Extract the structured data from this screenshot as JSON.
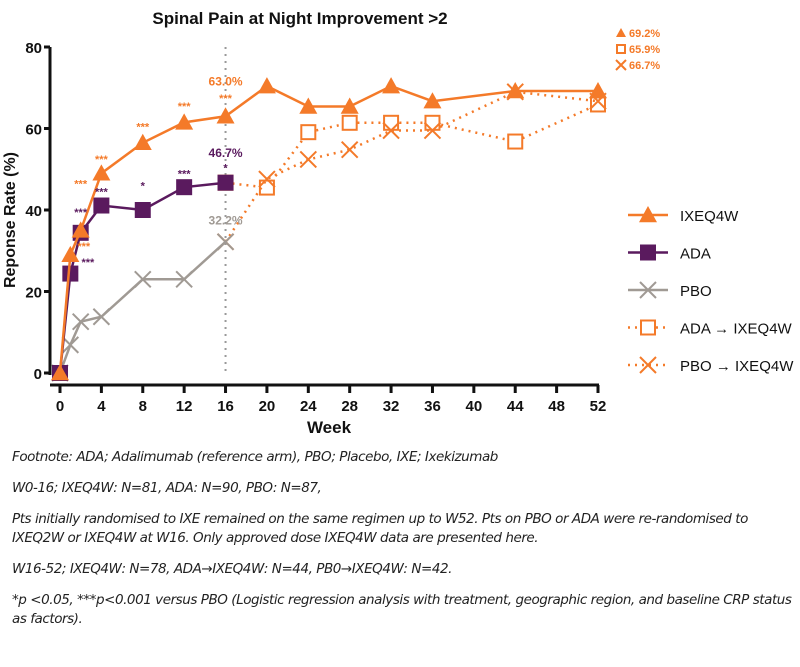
{
  "chart_data": {
    "type": "line",
    "title": "Spinal Pain at Night Improvement >2",
    "xlabel": "Week",
    "ylabel": "Reponse Rate (%)",
    "xlim": [
      0,
      52
    ],
    "ylim": [
      0,
      80
    ],
    "xticks": [
      0,
      4,
      8,
      12,
      16,
      20,
      24,
      28,
      32,
      36,
      40,
      44,
      48,
      52
    ],
    "yticks": [
      0,
      20,
      40,
      60,
      80
    ],
    "reference_line_week": 16,
    "legend_position": "right",
    "series": [
      {
        "name": "IXEQ4W",
        "color": "#f47a29",
        "marker": "triangle",
        "style": "solid",
        "x": [
          0,
          1,
          2,
          4,
          8,
          12,
          16,
          20,
          24,
          28,
          32,
          36,
          44,
          52
        ],
        "values": [
          0,
          29,
          35,
          49,
          56.5,
          61.5,
          63.0,
          70.4,
          65.4,
          65.4,
          70.4,
          66.7,
          69.2,
          69.2
        ]
      },
      {
        "name": "ADA",
        "color": "#5a1a5e",
        "marker": "square",
        "style": "solid",
        "x": [
          0,
          1,
          2,
          4,
          8,
          12,
          16
        ],
        "values": [
          0,
          24.4,
          34.4,
          41.1,
          40.0,
          45.6,
          46.7
        ]
      },
      {
        "name": "PBO",
        "color": "#a09a94",
        "marker": "x",
        "style": "solid",
        "x": [
          0,
          1,
          2,
          4,
          8,
          12,
          16
        ],
        "values": [
          0,
          6.9,
          12.6,
          13.8,
          23.0,
          23.0,
          32.2
        ]
      },
      {
        "name": "ADA → IXEQ4W",
        "color": "#f47a29",
        "marker": "open-square",
        "style": "dotted",
        "x": [
          16,
          20,
          24,
          28,
          32,
          36,
          44,
          52
        ],
        "values": [
          46.7,
          45.5,
          59.1,
          61.4,
          61.4,
          61.4,
          56.8,
          65.9
        ]
      },
      {
        "name": "PBO → IXEQ4W",
        "color": "#f47a29",
        "marker": "x",
        "style": "dotted",
        "x": [
          16,
          20,
          24,
          28,
          32,
          36,
          44,
          52
        ],
        "values": [
          32.2,
          47.6,
          52.4,
          54.8,
          59.5,
          59.5,
          69.0,
          66.7
        ]
      }
    ],
    "annotations": [
      {
        "text": "***",
        "color": "#f47a29",
        "x": 4,
        "y": 51.5
      },
      {
        "text": "***",
        "color": "#f47a29",
        "x": 8,
        "y": 59.5
      },
      {
        "text": "***",
        "color": "#f47a29",
        "x": 12,
        "y": 64.5
      },
      {
        "text": "***",
        "color": "#f47a29",
        "x": 16,
        "y": 66.5
      },
      {
        "text": "63.0%",
        "color": "#f47a29",
        "x": 16,
        "y": 70.5
      },
      {
        "text": "***",
        "color": "#f47a29",
        "x": 2,
        "y": 45.5
      },
      {
        "text": "***",
        "color": "#f47a29",
        "x": 2.3,
        "y": 30.2
      },
      {
        "text": "***",
        "color": "#5a1a5e",
        "x": 2,
        "y": 38.5
      },
      {
        "text": "***",
        "color": "#5a1a5e",
        "x": 2.7,
        "y": 26.3
      },
      {
        "text": "***",
        "color": "#5a1a5e",
        "x": 4,
        "y": 43.5
      },
      {
        "text": "*",
        "color": "#5a1a5e",
        "x": 8,
        "y": 45
      },
      {
        "text": "***",
        "color": "#5a1a5e",
        "x": 12,
        "y": 48
      },
      {
        "text": "*",
        "color": "#5a1a5e",
        "x": 16,
        "y": 49.5
      },
      {
        "text": "46.7%",
        "color": "#5a1a5e",
        "x": 16,
        "y": 53
      },
      {
        "text": "32.2%",
        "color": "#a09a94",
        "x": 16,
        "y": 36.5
      }
    ],
    "endpoint_labels": [
      {
        "text": "69.2%",
        "marker": "triangle"
      },
      {
        "text": "65.9%",
        "marker": "open-square"
      },
      {
        "text": "66.7%",
        "marker": "x"
      }
    ]
  },
  "footnotes": [
    "Footnote: ADA; Adalimumab (reference arm), PBO; Placebo, IXE; Ixekizumab",
    "W0-16; IXEQ4W: N=81, ADA: N=90, PBO: N=87,",
    "Pts initially randomised to IXE remained on the same regimen up to W52. Pts on PBO or ADA were re-randomised to IXEQ2W or IXEQ4W at W16. Only approved dose IXEQ4W data are presented here.",
    "W16-52; IXEQ4W: N=78, ADA→IXEQ4W: N=44, PB0→IXEQ4W: N=42.",
    "*p <0.05, ***p<0.001 versus PBO (Logistic regression analysis with treatment, geographic region, and baseline CRP status as factors)."
  ]
}
